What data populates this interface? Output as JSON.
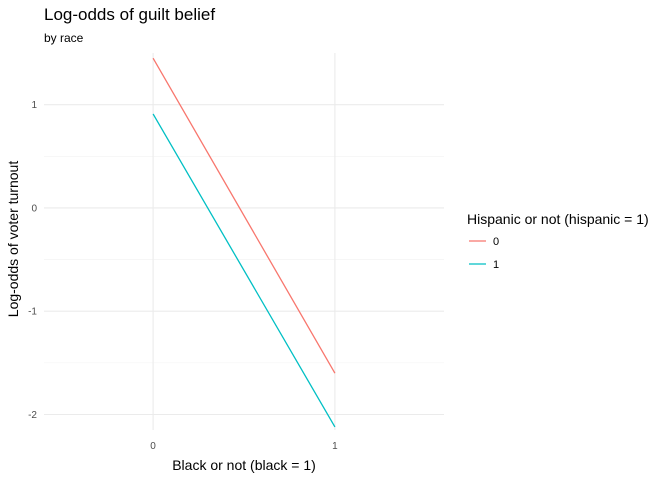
{
  "chart_data": {
    "type": "line",
    "title": "Log-odds of guilt belief",
    "subtitle": "by race",
    "xlabel": "Black or not (black = 1)",
    "ylabel": "Log-odds of voter turnout",
    "x": [
      0,
      1
    ],
    "x_ticks": [
      "0",
      "1"
    ],
    "y_ticks": [
      1,
      0,
      -1,
      -2
    ],
    "xlim": [
      -0.6,
      1.6
    ],
    "ylim": [
      -2.15,
      1.5
    ],
    "grid": true,
    "legend_position": "right",
    "legend_title": "Hispanic or not (hispanic = 1)",
    "series": [
      {
        "name": "0",
        "values": [
          1.45,
          -1.6
        ],
        "color": "#F8766D"
      },
      {
        "name": "1",
        "values": [
          0.91,
          -2.12
        ],
        "color": "#00BFC4"
      }
    ]
  }
}
